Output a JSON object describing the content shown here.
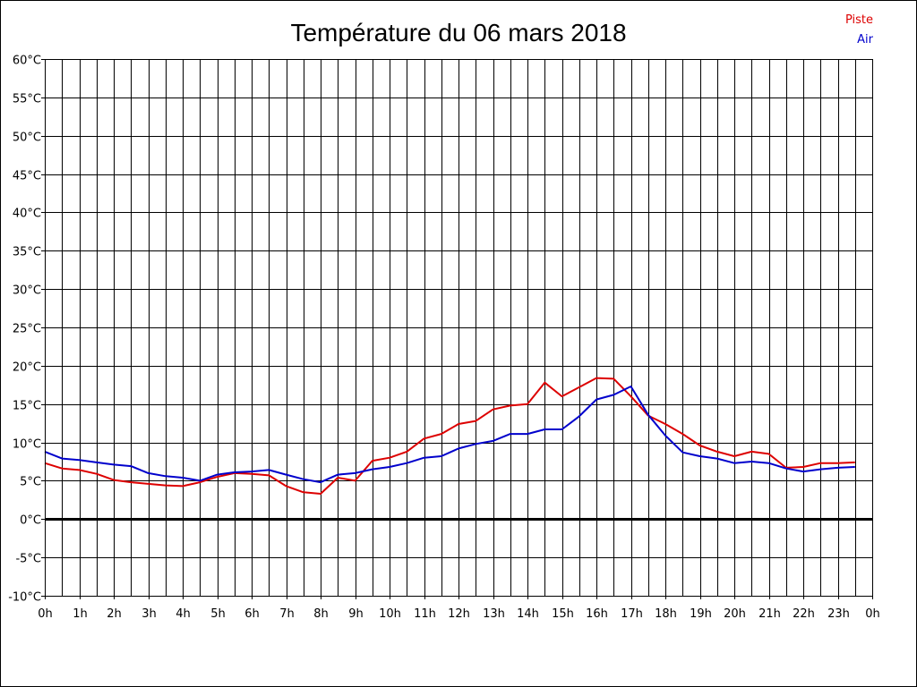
{
  "chart_data": {
    "type": "line",
    "title": "Température du 06 mars 2018",
    "xlabel": "",
    "ylabel": "",
    "x_tick_labels": [
      "0h",
      "1h",
      "2h",
      "3h",
      "4h",
      "5h",
      "6h",
      "7h",
      "8h",
      "9h",
      "10h",
      "11h",
      "12h",
      "13h",
      "14h",
      "15h",
      "16h",
      "17h",
      "18h",
      "19h",
      "20h",
      "21h",
      "22h",
      "23h",
      "0h"
    ],
    "y_tick_labels": [
      "60°C",
      "55°C",
      "50°C",
      "45°C",
      "40°C",
      "35°C",
      "30°C",
      "25°C",
      "20°C",
      "15°C",
      "10°C",
      "5°C",
      "0°C",
      "-5°C",
      "-10°C"
    ],
    "xlim": [
      0,
      24
    ],
    "ylim": [
      -10,
      60
    ],
    "grid": true,
    "legend_position": "top-right",
    "zero_line": true,
    "series": [
      {
        "name": "Piste",
        "color": "#dd0000",
        "x": [
          0,
          0.5,
          1,
          1.5,
          2,
          2.5,
          3,
          3.5,
          4,
          4.5,
          5,
          5.5,
          6,
          6.5,
          7,
          7.5,
          8,
          8.5,
          9,
          9.5,
          10,
          10.5,
          11,
          11.5,
          12,
          12.5,
          13,
          13.5,
          14,
          14.5,
          15,
          15.5,
          16,
          16.5,
          17,
          17.5,
          18,
          18.5,
          19,
          19.5,
          20,
          20.5,
          21,
          21.5,
          22,
          22.5,
          23,
          23.5
        ],
        "values": [
          7.3,
          6.6,
          6.4,
          5.9,
          5.1,
          4.8,
          4.6,
          4.4,
          4.3,
          4.8,
          5.5,
          6.0,
          5.9,
          5.7,
          4.3,
          3.5,
          3.3,
          5.4,
          5.0,
          7.6,
          8.0,
          8.8,
          10.5,
          11.1,
          12.4,
          12.8,
          14.3,
          14.8,
          15.0,
          17.8,
          16.0,
          17.2,
          18.4,
          18.3,
          16.0,
          13.5,
          12.4,
          11.1,
          9.6,
          8.8,
          8.2,
          8.8,
          8.5,
          6.7,
          6.8,
          7.3,
          7.3,
          7.4
        ]
      },
      {
        "name": "Air",
        "color": "#0000cc",
        "x": [
          0,
          0.5,
          1,
          1.5,
          2,
          2.5,
          3,
          3.5,
          4,
          4.5,
          5,
          5.5,
          6,
          6.5,
          7,
          7.5,
          8,
          8.5,
          9,
          9.5,
          10,
          10.5,
          11,
          11.5,
          12,
          12.5,
          13,
          13.5,
          14,
          14.5,
          15,
          15.5,
          16,
          16.5,
          17,
          17.5,
          18,
          18.5,
          19,
          19.5,
          20,
          20.5,
          21,
          21.5,
          22,
          22.5,
          23,
          23.5
        ],
        "values": [
          8.8,
          7.9,
          7.7,
          7.4,
          7.1,
          6.9,
          6.0,
          5.6,
          5.4,
          5.0,
          5.8,
          6.1,
          6.2,
          6.4,
          5.8,
          5.2,
          4.8,
          5.8,
          6.0,
          6.5,
          6.8,
          7.3,
          8.0,
          8.2,
          9.2,
          9.8,
          10.2,
          11.1,
          11.1,
          11.7,
          11.7,
          13.4,
          15.6,
          16.2,
          17.3,
          13.6,
          10.9,
          8.7,
          8.2,
          7.9,
          7.3,
          7.5,
          7.3,
          6.6,
          6.2,
          6.5,
          6.7,
          6.8
        ]
      }
    ]
  }
}
